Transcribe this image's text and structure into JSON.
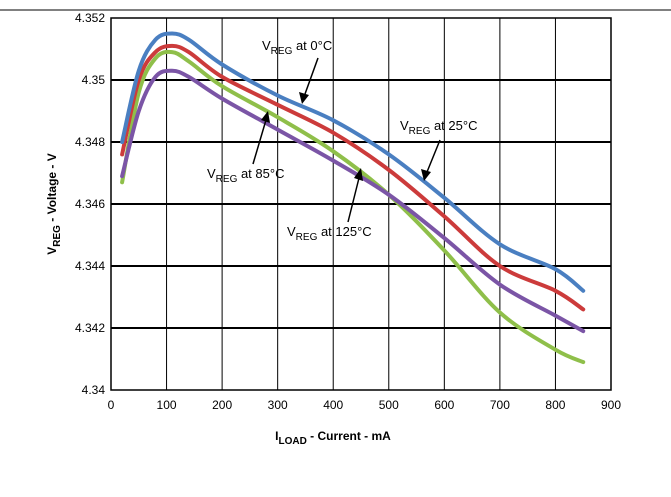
{
  "chart_data": {
    "type": "line",
    "xlabel": {
      "main": "I",
      "sub": "LOAD",
      "rest": " - Current - mA"
    },
    "ylabel": {
      "main": "V",
      "sub": "REG",
      "rest": " - Voltage - V"
    },
    "xlim": [
      0,
      900
    ],
    "ylim": [
      4.34,
      4.352
    ],
    "x_ticks": [
      0,
      100,
      200,
      300,
      400,
      500,
      600,
      700,
      800,
      900
    ],
    "y_ticks": [
      4.34,
      4.342,
      4.344,
      4.346,
      4.348,
      4.35,
      4.352
    ],
    "x_tick_labels": [
      "0",
      "100",
      "200",
      "300",
      "400",
      "500",
      "600",
      "700",
      "800",
      "900"
    ],
    "y_tick_labels": [
      "4.34",
      "4.342",
      "4.344",
      "4.346",
      "4.348",
      "4.35",
      "4.352"
    ],
    "grid": true,
    "series": [
      {
        "name": "0°C",
        "color": "#4a7fc1",
        "x": [
          20,
          50,
          80,
          110,
          140,
          200,
          300,
          400,
          500,
          600,
          700,
          800,
          850
        ],
        "y": [
          4.348,
          4.3503,
          4.3513,
          4.3515,
          4.3513,
          4.3505,
          4.3495,
          4.3487,
          4.3476,
          4.3462,
          4.3447,
          4.3439,
          4.3432
        ]
      },
      {
        "name": "25°C",
        "color": "#cc3b3b",
        "x": [
          20,
          50,
          80,
          110,
          140,
          200,
          300,
          400,
          500,
          600,
          700,
          800,
          850
        ],
        "y": [
          4.3476,
          4.35,
          4.3509,
          4.3511,
          4.3509,
          4.3501,
          4.3492,
          4.3483,
          4.3471,
          4.3456,
          4.344,
          4.3432,
          4.3426
        ]
      },
      {
        "name": "85°C",
        "color": "#8fbf4a",
        "x": [
          20,
          50,
          80,
          110,
          140,
          200,
          300,
          400,
          500,
          600,
          700,
          800,
          850
        ],
        "y": [
          4.3467,
          4.3496,
          4.3507,
          4.3509,
          4.3506,
          4.3498,
          4.3488,
          4.3477,
          4.3463,
          4.3445,
          4.3425,
          4.3413,
          4.3409
        ]
      },
      {
        "name": "125°C",
        "color": "#7b55a6",
        "x": [
          20,
          50,
          80,
          110,
          140,
          200,
          300,
          400,
          500,
          600,
          700,
          800,
          850
        ],
        "y": [
          4.3469,
          4.349,
          4.3501,
          4.3503,
          4.3501,
          4.3494,
          4.3484,
          4.3474,
          4.3463,
          4.3449,
          4.3434,
          4.3424,
          4.3419
        ]
      }
    ],
    "annotations": [
      {
        "main": "V",
        "sub": "REG",
        "rest": " at 0°C",
        "series": 0,
        "point_x": 335
      },
      {
        "main": "V",
        "sub": "REG",
        "rest": " at 25°C",
        "series": 1,
        "point_x": 565
      },
      {
        "main": "V",
        "sub": "REG",
        "rest": " at 85°C",
        "series": 2,
        "point_x": 285
      },
      {
        "main": "V",
        "sub": "REG",
        "rest": " at 125°C",
        "series": 3,
        "point_x": 455
      }
    ]
  }
}
